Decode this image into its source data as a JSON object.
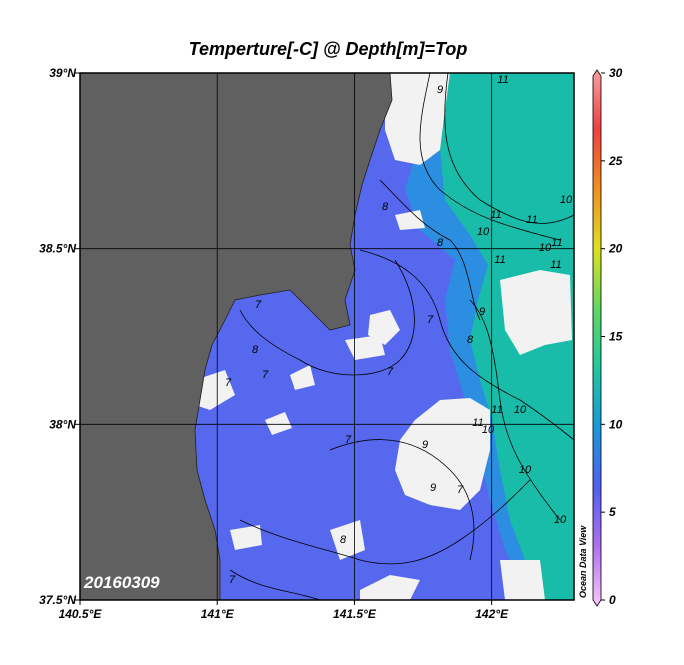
{
  "map": {
    "title": "Temperture[-C] @ Depth[m]=Top",
    "date": "20160309",
    "watermark": "Ocean Data View",
    "xlim": [
      140.5,
      142.3
    ],
    "ylim": [
      37.5,
      39
    ],
    "xticks": [
      {
        "value": 140.5,
        "label": "140.5°E"
      },
      {
        "value": 141,
        "label": "141°E"
      },
      {
        "value": 141.5,
        "label": "141.5°E"
      },
      {
        "value": 142,
        "label": "142°E"
      }
    ],
    "yticks": [
      {
        "value": 37.5,
        "label": "37.5°N"
      },
      {
        "value": 38,
        "label": "38°N"
      },
      {
        "value": 38.5,
        "label": "38.5°N"
      },
      {
        "value": 39,
        "label": "39°N"
      }
    ],
    "grid": true,
    "contour_labels": [
      9,
      11,
      10,
      8,
      11,
      10,
      11,
      8,
      11,
      10,
      11,
      11,
      7,
      8,
      7,
      9,
      8,
      7,
      7,
      7,
      10,
      7,
      11,
      9,
      10,
      11,
      7,
      9,
      10,
      10,
      8,
      7
    ],
    "colorbar": {
      "range": [
        0,
        30
      ],
      "ticks": [
        0,
        5,
        10,
        15,
        20,
        25,
        30
      ],
      "colors": [
        "#f8c8f8",
        "#b070f0",
        "#5060f0",
        "#1898d8",
        "#20c8a0",
        "#60d860",
        "#e0e020",
        "#f09020",
        "#f04040",
        "#f8a0a0"
      ]
    }
  }
}
